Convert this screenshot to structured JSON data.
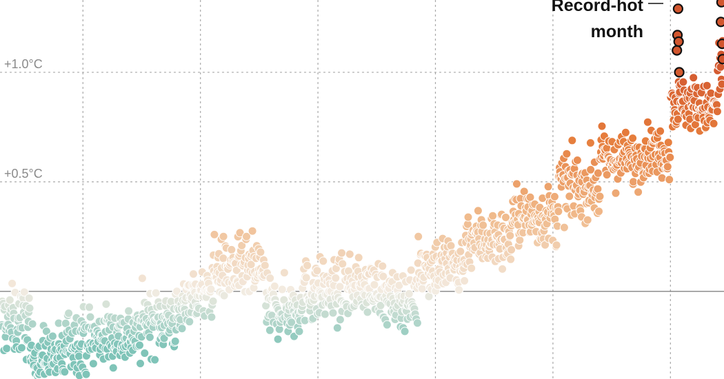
{
  "chart_data": {
    "type": "scatter",
    "xlim": [
      1901,
      2024
    ],
    "ylim": [
      -0.4,
      1.33
    ],
    "baseline": 0,
    "grid": true,
    "x_gridlines": [
      1915,
      1935,
      1955,
      1975,
      1995,
      2015
    ],
    "y_ticks": [
      {
        "value": 1.0,
        "label": "+1.0°C"
      },
      {
        "value": 0.5,
        "label": "+0.5°C"
      }
    ],
    "annotation": {
      "line1": "Record-hot",
      "line2": "month"
    },
    "color_scale": {
      "cold": "#7fc4b8",
      "neutral": "#f3ece2",
      "mild": "#f0b98a",
      "warm": "#e67d3c",
      "hot": "#d2562e"
    },
    "record_marker_color": "#111111",
    "eras": [
      {
        "from": 1901,
        "to": 1906,
        "mean": -0.14,
        "spread": 0.14
      },
      {
        "from": 1906,
        "to": 1912,
        "mean": -0.3,
        "spread": 0.12
      },
      {
        "from": 1912,
        "to": 1918,
        "mean": -0.22,
        "spread": 0.13
      },
      {
        "from": 1918,
        "to": 1925,
        "mean": -0.2,
        "spread": 0.12
      },
      {
        "from": 1925,
        "to": 1932,
        "mean": -0.13,
        "spread": 0.13
      },
      {
        "from": 1932,
        "to": 1937,
        "mean": -0.02,
        "spread": 0.1
      },
      {
        "from": 1937,
        "to": 1946,
        "mean": 0.1,
        "spread": 0.13
      },
      {
        "from": 1946,
        "to": 1952,
        "mean": -0.08,
        "spread": 0.12
      },
      {
        "from": 1952,
        "to": 1960,
        "mean": 0.0,
        "spread": 0.13
      },
      {
        "from": 1960,
        "to": 1966,
        "mean": 0.02,
        "spread": 0.11
      },
      {
        "from": 1966,
        "to": 1972,
        "mean": -0.04,
        "spread": 0.11
      },
      {
        "from": 1972,
        "to": 1980,
        "mean": 0.12,
        "spread": 0.13
      },
      {
        "from": 1980,
        "to": 1988,
        "mean": 0.24,
        "spread": 0.12
      },
      {
        "from": 1988,
        "to": 1996,
        "mean": 0.34,
        "spread": 0.12
      },
      {
        "from": 1996,
        "to": 2003,
        "mean": 0.48,
        "spread": 0.13
      },
      {
        "from": 2003,
        "to": 2010,
        "mean": 0.6,
        "spread": 0.11
      },
      {
        "from": 2010,
        "to": 2015,
        "mean": 0.64,
        "spread": 0.1
      },
      {
        "from": 2015,
        "to": 2020,
        "mean": 0.86,
        "spread": 0.11
      },
      {
        "from": 2020,
        "to": 2023,
        "mean": 0.83,
        "spread": 0.1
      },
      {
        "from": 2023,
        "to": 2024,
        "mean": 1.0,
        "spread": 0.18
      }
    ],
    "record_months": [
      {
        "x": 2016.1,
        "y": 1.1
      },
      {
        "x": 2016.2,
        "y": 1.17
      },
      {
        "x": 2016.3,
        "y": 1.29
      },
      {
        "x": 2016.4,
        "y": 1.14
      },
      {
        "x": 2016.5,
        "y": 1.0
      },
      {
        "x": 2023.6,
        "y": 1.23
      },
      {
        "x": 2023.7,
        "y": 1.32
      },
      {
        "x": 2023.8,
        "y": 1.13
      },
      {
        "x": 2023.9,
        "y": 1.06
      }
    ]
  }
}
